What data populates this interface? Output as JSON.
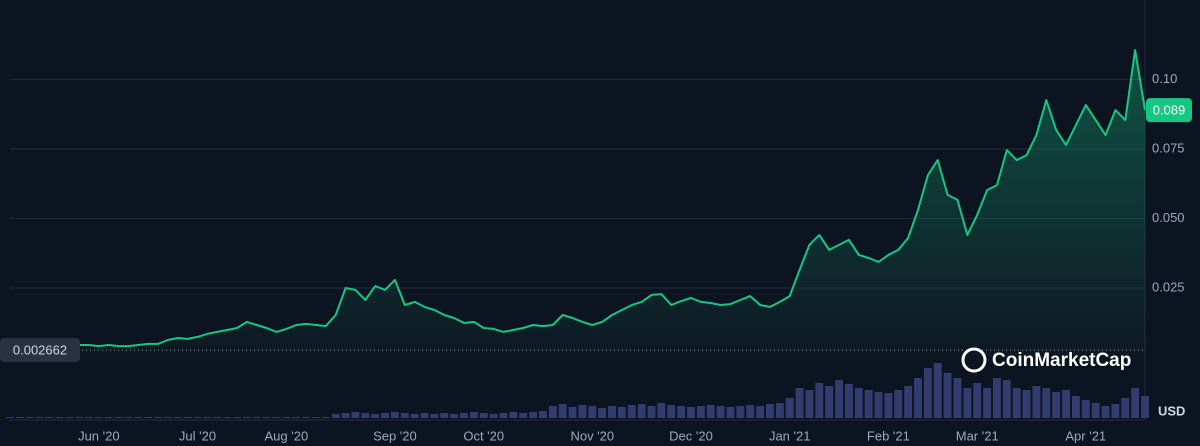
{
  "chart_data": {
    "type": "line",
    "categories": [
      null,
      null,
      null,
      null,
      null,
      null,
      null,
      null,
      null,
      "Jun '20",
      null,
      null,
      null,
      null,
      null,
      null,
      null,
      null,
      null,
      "Jul '20",
      null,
      null,
      null,
      null,
      null,
      null,
      null,
      null,
      "Aug '20",
      null,
      null,
      null,
      null,
      null,
      null,
      null,
      null,
      null,
      null,
      "Sep '20",
      null,
      null,
      null,
      null,
      null,
      null,
      null,
      null,
      "Oct '20",
      null,
      null,
      null,
      null,
      null,
      null,
      null,
      null,
      null,
      null,
      "Nov '20",
      null,
      null,
      null,
      null,
      null,
      null,
      null,
      null,
      null,
      "Dec '20",
      null,
      null,
      null,
      null,
      null,
      null,
      null,
      null,
      null,
      "Jan '21",
      null,
      null,
      null,
      null,
      null,
      null,
      null,
      null,
      null,
      "Feb '21",
      null,
      null,
      null,
      null,
      null,
      null,
      null,
      null,
      "Mar '21",
      null,
      null,
      null,
      null,
      null,
      null,
      null,
      null,
      null,
      null,
      "Apr '21",
      null,
      null,
      null,
      null,
      null,
      null
    ],
    "series": [
      {
        "color": "#16c784",
        "values": [
          0.002662,
          0.0038,
          0.0038,
          0.0041,
          0.0041,
          0.0041,
          0.0041,
          0.0045,
          0.0045,
          0.0041,
          0.0045,
          0.0041,
          0.0041,
          0.0045,
          0.0049,
          0.0049,
          0.0063,
          0.007,
          0.0067,
          0.0074,
          0.0085,
          0.0092,
          0.0099,
          0.0106,
          0.0128,
          0.0117,
          0.0106,
          0.0092,
          0.0103,
          0.0117,
          0.0121,
          0.0117,
          0.0113,
          0.0153,
          0.025,
          0.0243,
          0.0207,
          0.0257,
          0.0243,
          0.0279,
          0.0189,
          0.02,
          0.0182,
          0.0171,
          0.0153,
          0.0142,
          0.0124,
          0.0128,
          0.0106,
          0.0103,
          0.0092,
          0.0099,
          0.0106,
          0.0117,
          0.0113,
          0.0117,
          0.0153,
          0.0142,
          0.0128,
          0.0117,
          0.0128,
          0.0153,
          0.0171,
          0.0189,
          0.02,
          0.0225,
          0.0228,
          0.0189,
          0.0203,
          0.0214,
          0.02,
          0.0196,
          0.0189,
          0.0192,
          0.0207,
          0.0221,
          0.0189,
          0.0182,
          0.02,
          0.0221,
          0.0315,
          0.0405,
          0.0441,
          0.0387,
          0.0405,
          0.0423,
          0.0369,
          0.0358,
          0.0344,
          0.0369,
          0.0387,
          0.043,
          0.0531,
          0.0656,
          0.071,
          0.0585,
          0.0567,
          0.0441,
          0.0513,
          0.0602,
          0.062,
          0.0746,
          0.071,
          0.0728,
          0.08,
          0.0926,
          0.0818,
          0.0764,
          0.0836,
          0.0908,
          0.0854,
          0.08,
          0.089,
          0.0854,
          0.1106,
          0.089
        ]
      }
    ],
    "volume": [
      1,
      1,
      1,
      1,
      1,
      1,
      1,
      1,
      1,
      1,
      1,
      1,
      1,
      1,
      1,
      1,
      1,
      1,
      1,
      1,
      1,
      1,
      1,
      1,
      1,
      1,
      1,
      1,
      1,
      1,
      1,
      1,
      1,
      4,
      5,
      6,
      5,
      4,
      5,
      6,
      5,
      4,
      5,
      4,
      5,
      4,
      5,
      6,
      5,
      4,
      5,
      6,
      5,
      6,
      7,
      12,
      14,
      11,
      13,
      12,
      10,
      12,
      11,
      13,
      14,
      12,
      15,
      13,
      12,
      11,
      12,
      13,
      12,
      11,
      12,
      13,
      12,
      14,
      15,
      20,
      30,
      28,
      35,
      32,
      38,
      34,
      30,
      28,
      26,
      25,
      28,
      32,
      40,
      50,
      55,
      45,
      40,
      30,
      35,
      30,
      40,
      38,
      30,
      28,
      32,
      30,
      26,
      28,
      22,
      18,
      15,
      12,
      14,
      20,
      30,
      22
    ],
    "volume_color": "#323c6e",
    "ylim": [
      0,
      0.125
    ],
    "yticks": [
      0.025,
      {
        "value": 0.05,
        "label": "0.050"
      },
      0.075,
      {
        "value": 0.1,
        "label": "0.10"
      }
    ],
    "grid": true,
    "currency_label": "USD",
    "watermark": "CoinMarketCap"
  }
}
